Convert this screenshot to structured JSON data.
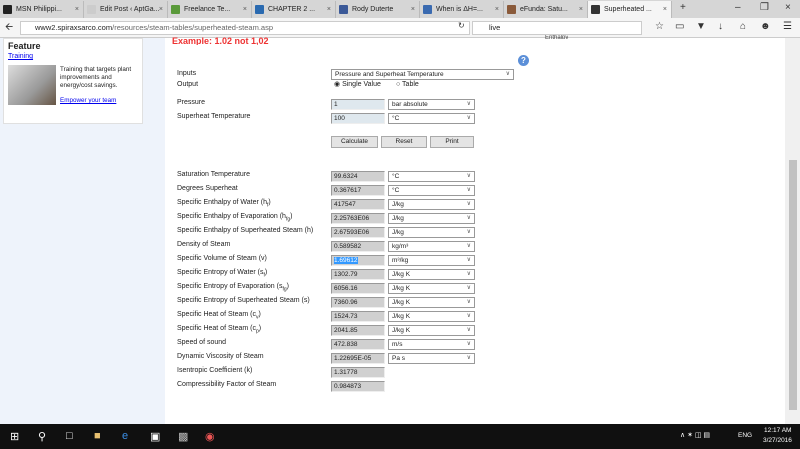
{
  "browser": {
    "tabs": [
      {
        "label": "MSN Philippi...",
        "color": "#222"
      },
      {
        "label": "Edit Post ‹ AptGa...",
        "color": "#ccc"
      },
      {
        "label": "Freelance Te...",
        "color": "#5a9a3a"
      },
      {
        "label": "CHAPTER 2 ...",
        "color": "#2a6ab0"
      },
      {
        "label": "Rody Duterte",
        "color": "#3b5998"
      },
      {
        "label": "When is ΔH=...",
        "color": "#3a6ab0"
      },
      {
        "label": "eFunda: Satu...",
        "color": "#8a5a3a"
      },
      {
        "label": "Superheated ...",
        "color": "#333"
      }
    ],
    "url_domain": "www2.spiraxsarco.com",
    "url_path": "/resources/steam-tables/superheated-steam.asp",
    "search_value": "live"
  },
  "sidebar": {
    "heading": "Feature",
    "link": "Training",
    "blurb": "Training that targets plant improvements and energy/cost savings.",
    "cta": "Empower your team"
  },
  "main": {
    "example_note": "Example: 1.02 not 1,02",
    "cutoff_text": "Enthalpy",
    "inputs_label": "Inputs",
    "inputs_value": "Pressure and Superheat Temperature",
    "output_label": "Output",
    "output_options": [
      "Single Value",
      "Table"
    ],
    "output_selected": "Single Value",
    "pressure": {
      "label": "Pressure",
      "value": "1",
      "unit": "bar absolute"
    },
    "superheat": {
      "label": "Superheat Temperature",
      "value": "100",
      "unit": "°C"
    },
    "buttons": {
      "calculate": "Calculate",
      "reset": "Reset",
      "print": "Print"
    },
    "results": [
      {
        "label": "Saturation Temperature",
        "value": "99.6324",
        "unit": "°C"
      },
      {
        "label": "Degrees Superheat",
        "value": "0.367617",
        "unit": "°C"
      },
      {
        "label": "Specific Enthalpy of Water (h",
        "sub": "f",
        "end": ")",
        "value": "417547",
        "unit": "J/kg"
      },
      {
        "label": "Specific Enthalpy of Evaporation (h",
        "sub": "fg",
        "end": ")",
        "value": "2.25763E06",
        "unit": "J/kg"
      },
      {
        "label": "Specific Enthalpy of Superheated Steam (h)",
        "value": "2.67593E06",
        "unit": "J/kg"
      },
      {
        "label": "Density of Steam",
        "value": "0.589582",
        "unit": "kg/m³"
      },
      {
        "label": "Specific Volume of Steam (v)",
        "value": "1.69612",
        "unit": "m³/kg",
        "selected": true
      },
      {
        "label": "Specific Entropy of Water (s",
        "sub": "f",
        "end": ")",
        "value": "1302.79",
        "unit": "J/kg K"
      },
      {
        "label": "Specific Entropy of Evaporation (s",
        "sub": "fg",
        "end": ")",
        "value": "6056.16",
        "unit": "J/kg K"
      },
      {
        "label": "Specific Entropy of Superheated Steam (s)",
        "value": "7360.96",
        "unit": "J/kg K"
      },
      {
        "label": "Specific Heat of Steam (c",
        "sub": "v",
        "end": ")",
        "value": "1524.73",
        "unit": "J/kg K"
      },
      {
        "label": "Specific Heat of Steam (c",
        "sub": "p",
        "end": ")",
        "value": "2041.85",
        "unit": "J/kg K"
      },
      {
        "label": "Speed of sound",
        "value": "472.838",
        "unit": "m/s"
      },
      {
        "label": "Dynamic Viscosity of Steam",
        "value": "1.22695E-05",
        "unit": "Pa s"
      },
      {
        "label": "Isentropic Coefficient (k)",
        "value": "1.31778"
      },
      {
        "label": "Compressibility Factor of Steam",
        "value": "0.984873"
      }
    ]
  },
  "taskbar": {
    "lang": "ENG",
    "time": "12:17 AM",
    "date": "3/27/2016"
  }
}
